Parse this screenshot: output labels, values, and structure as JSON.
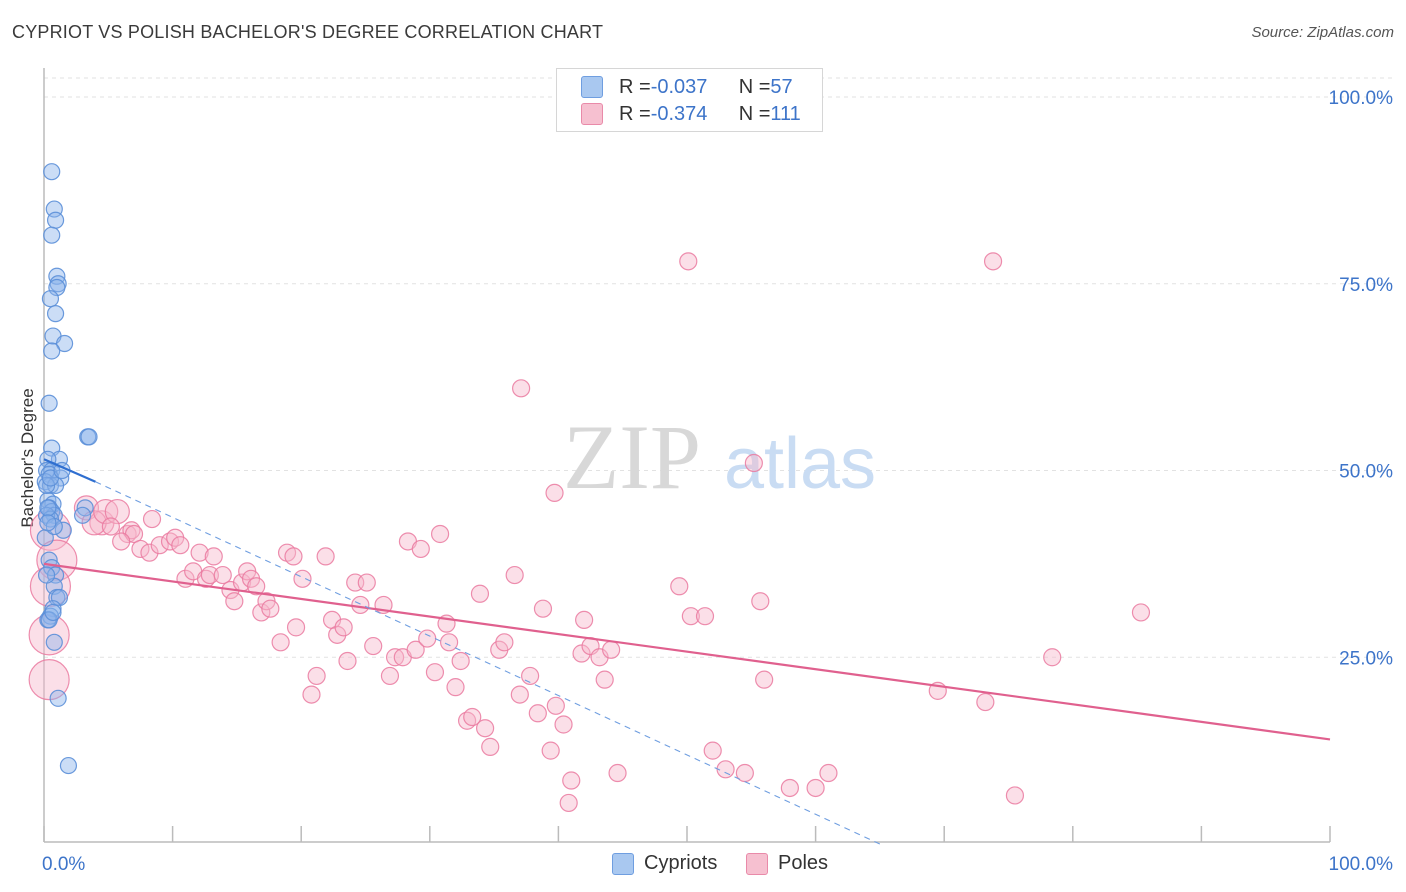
{
  "title": "CYPRIOT VS POLISH BACHELOR'S DEGREE CORRELATION CHART",
  "source": "Source: ZipAtlas.com",
  "watermark": {
    "zip": "ZIP",
    "atlas": "atlas"
  },
  "legend": {
    "rows": [
      {
        "r_label": "R = ",
        "r_value": "-0.037",
        "n_label": "N = ",
        "n_value": "57",
        "color": "#a9c8f0",
        "stroke": "#6f9ee0"
      },
      {
        "r_label": "R = ",
        "r_value": "-0.374",
        "n_label": "N = ",
        "n_value": "111",
        "color": "#f6c0d0",
        "stroke": "#e98aa9"
      }
    ]
  },
  "bottom_legend": [
    {
      "label": "Cypriots",
      "color": "#a9c8f0",
      "stroke": "#6f9ee0"
    },
    {
      "label": "Poles",
      "color": "#f6c0d0",
      "stroke": "#e98aa9"
    }
  ],
  "chart_data": {
    "type": "scatter",
    "title": "CYPRIOT VS POLISH BACHELOR'S DEGREE CORRELATION CHART",
    "xlabel": "",
    "ylabel": "Bachelor's Degree",
    "xlim": [
      0,
      100
    ],
    "ylim": [
      0,
      102
    ],
    "x_tick_labels": [
      "0.0%",
      "100.0%"
    ],
    "y_ticks": [
      25,
      50,
      75,
      100
    ],
    "y_tick_labels": [
      "25.0%",
      "50.0%",
      "75.0%",
      "100.0%"
    ],
    "grid": true,
    "legend_position": "top-center",
    "colors": {
      "cypriots": "#5b8fd8",
      "poles": "#ea7aa0",
      "cyp_trend": "#2f6fd0",
      "pol_trend": "#e0608e"
    },
    "series": [
      {
        "name": "Cypriots",
        "r": -0.037,
        "n": 57,
        "points": [
          [
            0.6,
            90
          ],
          [
            0.8,
            85
          ],
          [
            0.9,
            83.5
          ],
          [
            0.6,
            81.5
          ],
          [
            1.0,
            76
          ],
          [
            1.1,
            75
          ],
          [
            1.0,
            74.5
          ],
          [
            0.5,
            73
          ],
          [
            0.9,
            71
          ],
          [
            0.7,
            68
          ],
          [
            1.6,
            67
          ],
          [
            0.6,
            66
          ],
          [
            0.4,
            59
          ],
          [
            3.4,
            54.5
          ],
          [
            3.5,
            54.5
          ],
          [
            0.6,
            53
          ],
          [
            1.2,
            51.5
          ],
          [
            0.3,
            51.5
          ],
          [
            0.2,
            50
          ],
          [
            0.6,
            50
          ],
          [
            0.4,
            49.5
          ],
          [
            1.3,
            49
          ],
          [
            0.1,
            48.5
          ],
          [
            0.5,
            48
          ],
          [
            0.9,
            48
          ],
          [
            0.3,
            46
          ],
          [
            0.7,
            45.5
          ],
          [
            0.4,
            45
          ],
          [
            3.2,
            45
          ],
          [
            0.6,
            44.5
          ],
          [
            0.8,
            44
          ],
          [
            0.2,
            44
          ],
          [
            3.0,
            44
          ],
          [
            0.5,
            43.5
          ],
          [
            1.5,
            42
          ],
          [
            0.1,
            41
          ],
          [
            0.4,
            38
          ],
          [
            0.6,
            37
          ],
          [
            0.9,
            36
          ],
          [
            0.8,
            34.5
          ],
          [
            1.0,
            33
          ],
          [
            1.2,
            33
          ],
          [
            0.7,
            31.5
          ],
          [
            0.5,
            30.5
          ],
          [
            0.3,
            30
          ],
          [
            0.8,
            27
          ],
          [
            1.1,
            19.5
          ],
          [
            1.9,
            10.5
          ],
          [
            0.2,
            48
          ],
          [
            0.3,
            45
          ],
          [
            0.5,
            49
          ],
          [
            0.8,
            42.5
          ],
          [
            0.3,
            43
          ],
          [
            0.2,
            36
          ],
          [
            1.4,
            50
          ],
          [
            0.4,
            30
          ],
          [
            0.7,
            31
          ]
        ],
        "trend": [
          [
            0,
            51.5
          ],
          [
            4,
            48.5
          ]
        ],
        "trend_dashed": [
          [
            4,
            48.5
          ],
          [
            65,
            0
          ]
        ]
      },
      {
        "name": "Poles",
        "r": -0.374,
        "n": 111,
        "points": [
          [
            0.5,
            42
          ],
          [
            1.0,
            38
          ],
          [
            0.5,
            34.5
          ],
          [
            0.4,
            28
          ],
          [
            0.4,
            22
          ],
          [
            3.3,
            45
          ],
          [
            4.5,
            43
          ],
          [
            3.9,
            43
          ],
          [
            4.8,
            44.5
          ],
          [
            5.7,
            44.5
          ],
          [
            5.2,
            42.5
          ],
          [
            6.5,
            41.5
          ],
          [
            6.8,
            42
          ],
          [
            7.0,
            41.5
          ],
          [
            6.0,
            40.5
          ],
          [
            7.5,
            39.5
          ],
          [
            8.2,
            39
          ],
          [
            8.4,
            43.5
          ],
          [
            9.0,
            40
          ],
          [
            9.8,
            40.5
          ],
          [
            10.2,
            41
          ],
          [
            10.6,
            40
          ],
          [
            11.0,
            35.5
          ],
          [
            11.6,
            36.5
          ],
          [
            12.1,
            39
          ],
          [
            12.6,
            35.5
          ],
          [
            12.9,
            36
          ],
          [
            13.2,
            38.5
          ],
          [
            13.9,
            36
          ],
          [
            14.5,
            34
          ],
          [
            14.8,
            32.5
          ],
          [
            15.4,
            35
          ],
          [
            15.8,
            36.5
          ],
          [
            16.1,
            35.5
          ],
          [
            16.5,
            34.5
          ],
          [
            16.9,
            31
          ],
          [
            17.3,
            32.5
          ],
          [
            17.6,
            31.5
          ],
          [
            18.4,
            27
          ],
          [
            18.9,
            39
          ],
          [
            19.4,
            38.5
          ],
          [
            19.6,
            29
          ],
          [
            20.1,
            35.5
          ],
          [
            20.8,
            20
          ],
          [
            21.2,
            22.5
          ],
          [
            21.9,
            38.5
          ],
          [
            22.4,
            30
          ],
          [
            22.8,
            28
          ],
          [
            23.3,
            29
          ],
          [
            23.6,
            24.5
          ],
          [
            24.2,
            35
          ],
          [
            24.6,
            32
          ],
          [
            25.1,
            35
          ],
          [
            25.6,
            26.5
          ],
          [
            26.4,
            32
          ],
          [
            26.9,
            22.5
          ],
          [
            27.3,
            25
          ],
          [
            27.9,
            25
          ],
          [
            28.3,
            40.5
          ],
          [
            28.9,
            26
          ],
          [
            29.3,
            39.5
          ],
          [
            29.8,
            27.5
          ],
          [
            30.4,
            23
          ],
          [
            30.8,
            41.5
          ],
          [
            31.5,
            27
          ],
          [
            31.3,
            29.5
          ],
          [
            32.0,
            21
          ],
          [
            32.4,
            24.5
          ],
          [
            32.9,
            16.5
          ],
          [
            33.3,
            17
          ],
          [
            33.9,
            33.5
          ],
          [
            34.3,
            15.5
          ],
          [
            34.7,
            13
          ],
          [
            35.4,
            26
          ],
          [
            35.8,
            27
          ],
          [
            36.6,
            36
          ],
          [
            37.0,
            20
          ],
          [
            37.8,
            22.5
          ],
          [
            38.4,
            17.5
          ],
          [
            38.8,
            31.5
          ],
          [
            39.4,
            12.5
          ],
          [
            39.8,
            18.5
          ],
          [
            40.4,
            16
          ],
          [
            41.0,
            8.5
          ],
          [
            40.8,
            5.5
          ],
          [
            41.8,
            25.5
          ],
          [
            42.0,
            30
          ],
          [
            42.5,
            26.5
          ],
          [
            43.2,
            25
          ],
          [
            43.6,
            22
          ],
          [
            44.1,
            26
          ],
          [
            44.6,
            9.5
          ],
          [
            49.4,
            34.5
          ],
          [
            50.1,
            78
          ],
          [
            50.3,
            30.5
          ],
          [
            51.4,
            30.5
          ],
          [
            52.0,
            12.5
          ],
          [
            53.0,
            10
          ],
          [
            54.5,
            9.5
          ],
          [
            55.2,
            51
          ],
          [
            55.7,
            32.5
          ],
          [
            56.0,
            22
          ],
          [
            58.0,
            7.5
          ],
          [
            60.0,
            7.5
          ],
          [
            61.0,
            9.5
          ],
          [
            73.8,
            78
          ],
          [
            69.5,
            20.5
          ],
          [
            73.2,
            19
          ],
          [
            75.5,
            6.5
          ],
          [
            78.4,
            25
          ],
          [
            85.3,
            31
          ],
          [
            37.1,
            61
          ],
          [
            39.7,
            47
          ]
        ],
        "trend": [
          [
            0,
            37.5
          ],
          [
            100,
            14
          ]
        ]
      }
    ]
  }
}
